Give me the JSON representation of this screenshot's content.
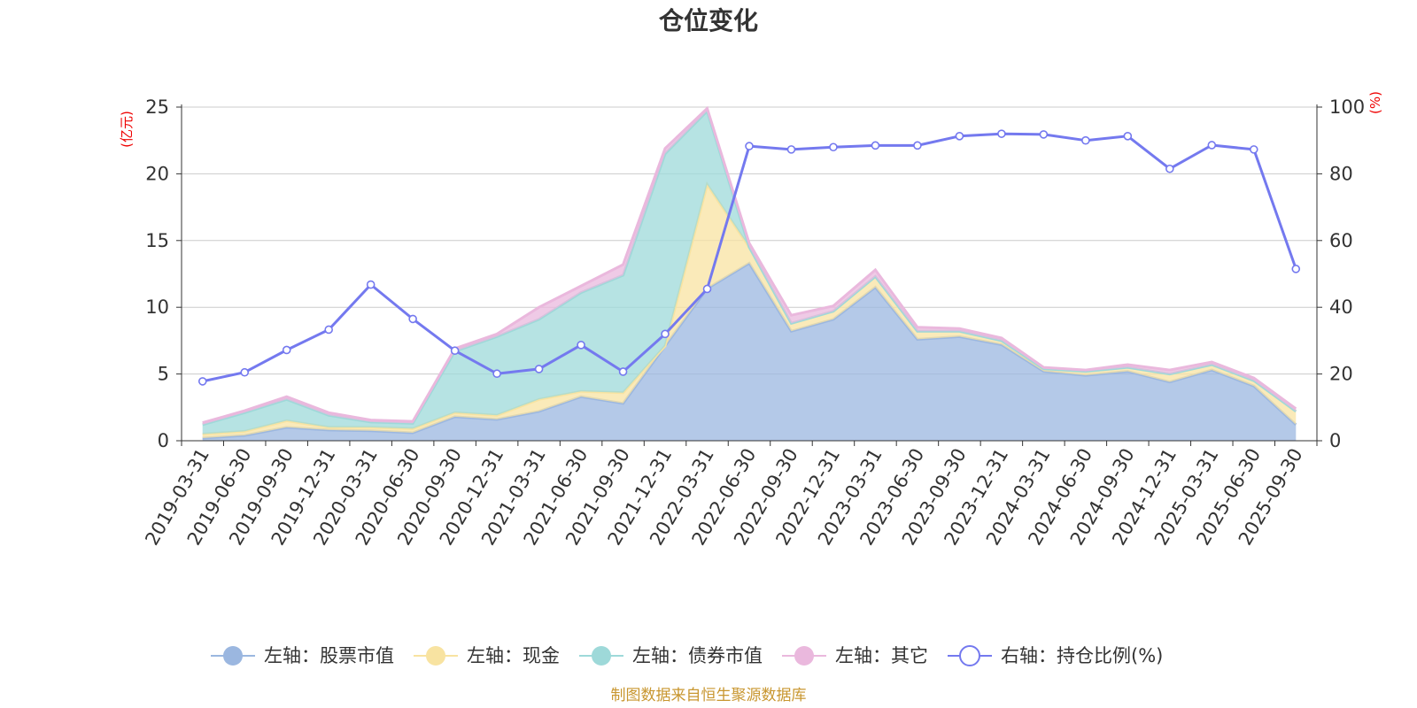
{
  "chart_data": {
    "type": "area",
    "title": "仓位变化",
    "left_axis_unit": "(亿元)",
    "right_axis_unit": "(%)",
    "ylim_left": [
      0,
      25
    ],
    "ylim_right": [
      0,
      100
    ],
    "yticks_left": [
      0,
      5,
      10,
      15,
      20,
      25
    ],
    "yticks_right": [
      0,
      20,
      40,
      60,
      80,
      100
    ],
    "categories": [
      "2019-03-31",
      "2019-06-30",
      "2019-09-30",
      "2019-12-31",
      "2020-03-31",
      "2020-06-30",
      "2020-09-30",
      "2020-12-31",
      "2021-03-31",
      "2021-06-30",
      "2021-09-30",
      "2021-12-31",
      "2022-03-31",
      "2022-06-30",
      "2022-09-30",
      "2022-12-31",
      "2023-03-31",
      "2023-06-30",
      "2023-09-30",
      "2023-12-31",
      "2024-03-31",
      "2024-06-30",
      "2024-09-30",
      "2024-12-31",
      "2025-03-31",
      "2025-06-30",
      "2025-09-30"
    ],
    "stacked_series": [
      {
        "name": "左轴：股票市值",
        "axis": "left",
        "color": "#9bb7e0",
        "values": [
          0.2,
          0.4,
          1.0,
          0.8,
          0.75,
          0.6,
          1.8,
          1.6,
          2.2,
          3.3,
          2.8,
          7.1,
          11.4,
          13.3,
          8.2,
          9.1,
          11.5,
          7.6,
          7.8,
          7.2,
          5.2,
          4.9,
          5.2,
          4.4,
          5.3,
          4.1,
          1.2
        ]
      },
      {
        "name": "左轴：现金",
        "axis": "left",
        "color": "#f8e3a1",
        "values": [
          0.3,
          0.3,
          0.5,
          0.2,
          0.25,
          0.3,
          0.3,
          0.3,
          0.9,
          0.4,
          0.8,
          0.0,
          7.8,
          1.2,
          0.6,
          0.6,
          0.8,
          0.6,
          0.4,
          0.3,
          0.2,
          0.3,
          0.3,
          0.6,
          0.4,
          0.4,
          1.0
        ]
      },
      {
        "name": "左轴：债券市值",
        "axis": "left",
        "color": "#9ed9d9",
        "values": [
          0.7,
          1.4,
          1.6,
          0.9,
          0.4,
          0.4,
          4.6,
          5.9,
          6.0,
          7.4,
          8.8,
          14.4,
          5.5,
          0.0,
          0.0,
          0.0,
          0.0,
          0.0,
          0.0,
          0.0,
          0.0,
          0.0,
          0.0,
          0.0,
          0.0,
          0.0,
          0.0
        ]
      },
      {
        "name": "左轴：其它",
        "axis": "left",
        "color": "#eab8dd",
        "values": [
          0.15,
          0.15,
          0.2,
          0.2,
          0.15,
          0.15,
          0.2,
          0.2,
          0.9,
          0.5,
          0.8,
          0.4,
          0.2,
          0.3,
          0.6,
          0.4,
          0.5,
          0.3,
          0.2,
          0.2,
          0.1,
          0.1,
          0.2,
          0.3,
          0.2,
          0.2,
          0.2
        ]
      }
    ],
    "line_series": {
      "name": "右轴：持仓比例(%)",
      "axis": "right",
      "color": "#7479ef",
      "values": [
        17.8,
        20.5,
        27.2,
        33.3,
        46.8,
        36.5,
        27.0,
        20.1,
        21.5,
        28.7,
        20.7,
        32.0,
        45.5,
        88.3,
        87.3,
        88.0,
        88.5,
        88.5,
        91.3,
        92.0,
        91.8,
        90.0,
        91.3,
        81.5,
        88.6,
        87.3,
        51.5
      ]
    },
    "legend_position": "bottom",
    "legend": [
      "左轴：股票市值",
      "左轴：现金",
      "左轴：债券市值",
      "左轴：其它",
      "右轴：持仓比例(%)"
    ]
  },
  "source_note": "制图数据来自恒生聚源数据库"
}
